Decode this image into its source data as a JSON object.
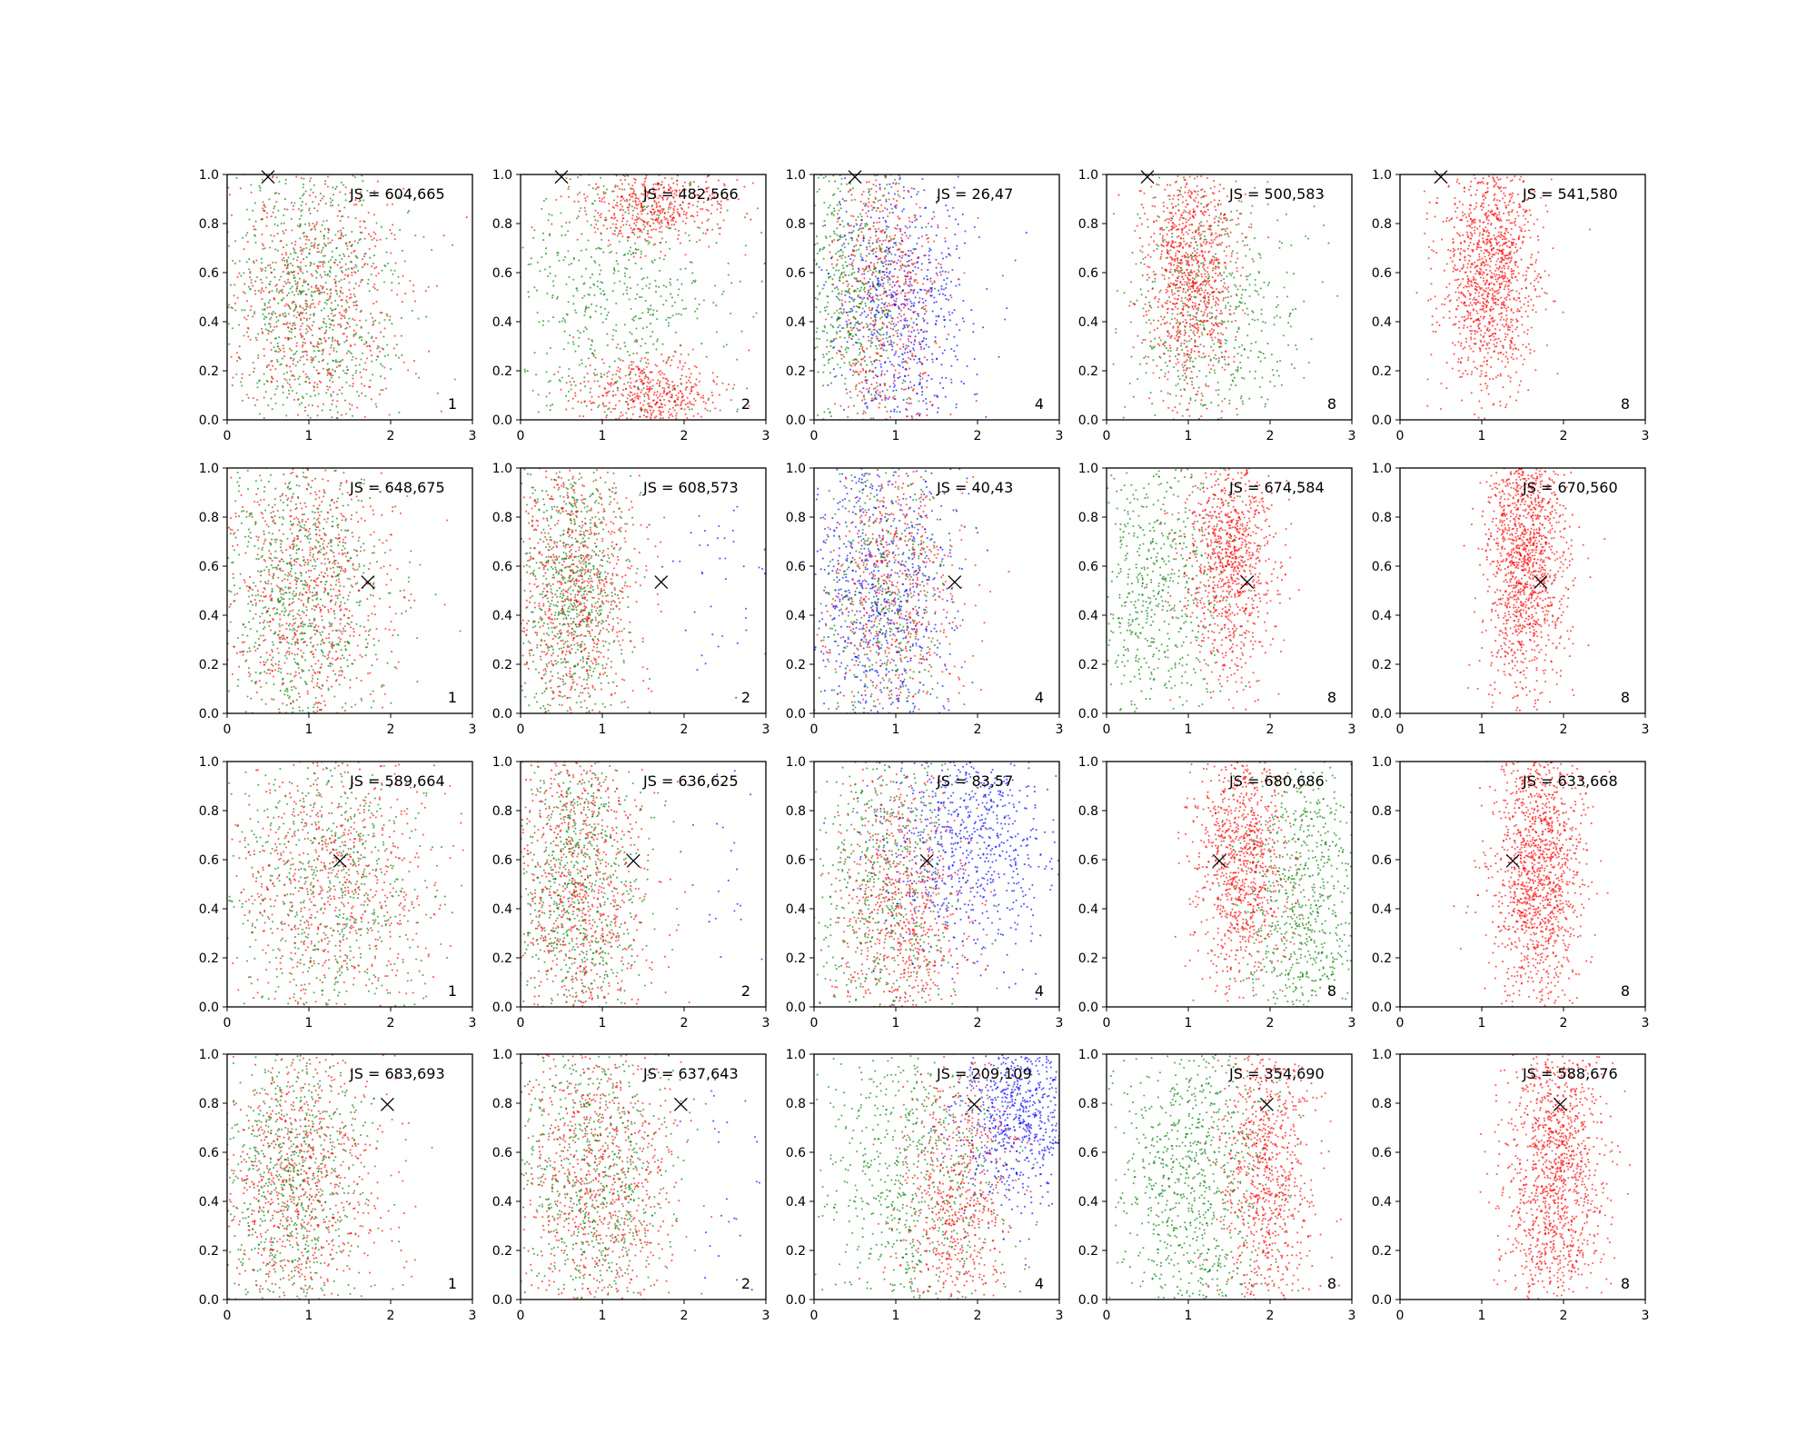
{
  "chart_data": {
    "type": "scatter",
    "layout": {
      "rows": 4,
      "cols": 5
    },
    "xlim": [
      0,
      3
    ],
    "ylim": [
      0,
      1
    ],
    "xticks": [
      "0",
      "1",
      "2",
      "3"
    ],
    "yticks": [
      "0.0",
      "0.2",
      "0.4",
      "0.6",
      "0.8",
      "1.0"
    ],
    "grid": false,
    "colors": {
      "red": "#ff0000",
      "green": "#008000",
      "blue": "#0000ff",
      "marker": "#000000"
    },
    "js_prefix": "JS = ",
    "markers": [
      {
        "x": 0.5,
        "y": 0.99
      },
      {
        "x": 1.72,
        "y": 0.535
      },
      {
        "x": 1.38,
        "y": 0.595
      },
      {
        "x": 1.96,
        "y": 0.795
      }
    ],
    "panels": [
      {
        "row": 0,
        "col": 0,
        "js": "604,665",
        "k": "1",
        "series": [
          {
            "color": "green",
            "n": 900,
            "cx": 1.0,
            "sx": 0.55,
            "cy": 0.5,
            "sy": 0.32
          },
          {
            "color": "red",
            "n": 750,
            "cx": 1.05,
            "sx": 0.6,
            "cy": 0.45,
            "sy": 0.32
          }
        ]
      },
      {
        "row": 0,
        "col": 1,
        "js": "482,566",
        "k": "2",
        "series": [
          {
            "color": "green",
            "n": 700,
            "cx": 1.15,
            "sx": 0.7,
            "cy": 0.5,
            "sy": 0.35
          },
          {
            "color": "red",
            "n": 500,
            "cx": 1.6,
            "sx": 0.45,
            "cy": 0.88,
            "sy": 0.08
          },
          {
            "color": "red",
            "n": 500,
            "cx": 1.6,
            "sx": 0.45,
            "cy": 0.1,
            "sy": 0.08
          }
        ]
      },
      {
        "row": 0,
        "col": 2,
        "js": "26,47",
        "k": "4",
        "series": [
          {
            "color": "green",
            "n": 650,
            "cx": 0.5,
            "sx": 0.35,
            "cy": 0.5,
            "sy": 0.33
          },
          {
            "color": "red",
            "n": 650,
            "cx": 0.9,
            "sx": 0.35,
            "cy": 0.5,
            "sy": 0.33
          },
          {
            "color": "blue",
            "n": 700,
            "cx": 1.1,
            "sx": 0.45,
            "cy": 0.45,
            "sy": 0.3
          }
        ]
      },
      {
        "row": 0,
        "col": 3,
        "js": "500,583",
        "k": "8",
        "series": [
          {
            "color": "green",
            "n": 650,
            "cx": 1.3,
            "sx": 0.55,
            "cy": 0.45,
            "sy": 0.33
          },
          {
            "color": "red",
            "n": 1000,
            "cx": 1.05,
            "sx": 0.28,
            "cy": 0.6,
            "sy": 0.25
          }
        ]
      },
      {
        "row": 0,
        "col": 4,
        "js": "541,580",
        "k": "8",
        "series": [
          {
            "color": "red",
            "n": 1300,
            "cx": 1.1,
            "sx": 0.3,
            "cy": 0.62,
            "sy": 0.25
          }
        ]
      },
      {
        "row": 1,
        "col": 0,
        "js": "648,675",
        "k": "1",
        "series": [
          {
            "color": "green",
            "n": 900,
            "cx": 0.9,
            "sx": 0.5,
            "cy": 0.5,
            "sy": 0.32
          },
          {
            "color": "red",
            "n": 800,
            "cx": 1.0,
            "sx": 0.55,
            "cy": 0.5,
            "sy": 0.32
          }
        ]
      },
      {
        "row": 1,
        "col": 1,
        "js": "608,573",
        "k": "2",
        "series": [
          {
            "color": "green",
            "n": 850,
            "cx": 0.6,
            "sx": 0.35,
            "cy": 0.5,
            "sy": 0.33
          },
          {
            "color": "red",
            "n": 850,
            "cx": 0.65,
            "sx": 0.4,
            "cy": 0.5,
            "sy": 0.33
          },
          {
            "color": "blue",
            "n": 50,
            "cx": 2.4,
            "sx": 0.4,
            "cy": 0.5,
            "sy": 0.3
          }
        ]
      },
      {
        "row": 1,
        "col": 2,
        "js": "40,43",
        "k": "4",
        "series": [
          {
            "color": "blue",
            "n": 800,
            "cx": 0.8,
            "sx": 0.45,
            "cy": 0.5,
            "sy": 0.32
          },
          {
            "color": "red",
            "n": 650,
            "cx": 1.0,
            "sx": 0.4,
            "cy": 0.5,
            "sy": 0.33
          },
          {
            "color": "green",
            "n": 450,
            "cx": 0.8,
            "sx": 0.4,
            "cy": 0.5,
            "sy": 0.33
          }
        ]
      },
      {
        "row": 1,
        "col": 3,
        "js": "674,584",
        "k": "8",
        "series": [
          {
            "color": "green",
            "n": 700,
            "cx": 0.7,
            "sx": 0.45,
            "cy": 0.5,
            "sy": 0.33
          },
          {
            "color": "red",
            "n": 1000,
            "cx": 1.5,
            "sx": 0.28,
            "cy": 0.65,
            "sy": 0.25
          }
        ]
      },
      {
        "row": 1,
        "col": 4,
        "js": "670,560",
        "k": "8",
        "series": [
          {
            "color": "red",
            "n": 1400,
            "cx": 1.55,
            "sx": 0.25,
            "cy": 0.65,
            "sy": 0.28
          }
        ]
      },
      {
        "row": 2,
        "col": 0,
        "js": "589,664",
        "k": "1",
        "series": [
          {
            "color": "green",
            "n": 750,
            "cx": 1.2,
            "sx": 0.6,
            "cy": 0.5,
            "sy": 0.32
          },
          {
            "color": "red",
            "n": 800,
            "cx": 1.3,
            "sx": 0.65,
            "cy": 0.5,
            "sy": 0.32
          }
        ]
      },
      {
        "row": 2,
        "col": 1,
        "js": "636,625",
        "k": "2",
        "series": [
          {
            "color": "green",
            "n": 800,
            "cx": 0.7,
            "sx": 0.4,
            "cy": 0.5,
            "sy": 0.33
          },
          {
            "color": "red",
            "n": 850,
            "cx": 0.75,
            "sx": 0.42,
            "cy": 0.5,
            "sy": 0.33
          },
          {
            "color": "blue",
            "n": 30,
            "cx": 2.5,
            "sx": 0.3,
            "cy": 0.5,
            "sy": 0.3
          }
        ]
      },
      {
        "row": 2,
        "col": 2,
        "js": "83,57",
        "k": "4",
        "series": [
          {
            "color": "green",
            "n": 650,
            "cx": 0.85,
            "sx": 0.45,
            "cy": 0.5,
            "sy": 0.33
          },
          {
            "color": "red",
            "n": 750,
            "cx": 1.1,
            "sx": 0.4,
            "cy": 0.4,
            "sy": 0.3
          },
          {
            "color": "blue",
            "n": 800,
            "cx": 1.9,
            "sx": 0.55,
            "cy": 0.7,
            "sy": 0.25
          }
        ]
      },
      {
        "row": 2,
        "col": 3,
        "js": "680,686",
        "k": "8",
        "series": [
          {
            "color": "green",
            "n": 850,
            "cx": 2.4,
            "sx": 0.4,
            "cy": 0.45,
            "sy": 0.33
          },
          {
            "color": "red",
            "n": 1000,
            "cx": 1.65,
            "sx": 0.28,
            "cy": 0.6,
            "sy": 0.27
          }
        ]
      },
      {
        "row": 2,
        "col": 4,
        "js": "633,668",
        "k": "8",
        "series": [
          {
            "color": "red",
            "n": 1400,
            "cx": 1.7,
            "sx": 0.28,
            "cy": 0.55,
            "sy": 0.3
          }
        ]
      },
      {
        "row": 3,
        "col": 0,
        "js": "683,693",
        "k": "1",
        "series": [
          {
            "color": "green",
            "n": 800,
            "cx": 0.8,
            "sx": 0.45,
            "cy": 0.5,
            "sy": 0.32
          },
          {
            "color": "red",
            "n": 850,
            "cx": 0.9,
            "sx": 0.55,
            "cy": 0.5,
            "sy": 0.32
          }
        ]
      },
      {
        "row": 3,
        "col": 1,
        "js": "637,643",
        "k": "2",
        "series": [
          {
            "color": "green",
            "n": 800,
            "cx": 0.9,
            "sx": 0.5,
            "cy": 0.5,
            "sy": 0.33
          },
          {
            "color": "red",
            "n": 850,
            "cx": 0.95,
            "sx": 0.5,
            "cy": 0.5,
            "sy": 0.33
          },
          {
            "color": "blue",
            "n": 30,
            "cx": 2.5,
            "sx": 0.3,
            "cy": 0.5,
            "sy": 0.3
          }
        ]
      },
      {
        "row": 3,
        "col": 2,
        "js": "209,109",
        "k": "4",
        "series": [
          {
            "color": "green",
            "n": 800,
            "cx": 1.2,
            "sx": 0.55,
            "cy": 0.5,
            "sy": 0.33
          },
          {
            "color": "red",
            "n": 700,
            "cx": 1.75,
            "sx": 0.35,
            "cy": 0.4,
            "sy": 0.3
          },
          {
            "color": "blue",
            "n": 750,
            "cx": 2.5,
            "sx": 0.4,
            "cy": 0.75,
            "sy": 0.18
          }
        ]
      },
      {
        "row": 3,
        "col": 3,
        "js": "354,690",
        "k": "8",
        "series": [
          {
            "color": "green",
            "n": 950,
            "cx": 1.05,
            "sx": 0.5,
            "cy": 0.5,
            "sy": 0.33
          },
          {
            "color": "red",
            "n": 900,
            "cx": 1.95,
            "sx": 0.28,
            "cy": 0.5,
            "sy": 0.32
          }
        ]
      },
      {
        "row": 3,
        "col": 4,
        "js": "588,676",
        "k": "8",
        "series": [
          {
            "color": "red",
            "n": 1400,
            "cx": 1.9,
            "sx": 0.3,
            "cy": 0.5,
            "sy": 0.33
          }
        ]
      }
    ]
  }
}
